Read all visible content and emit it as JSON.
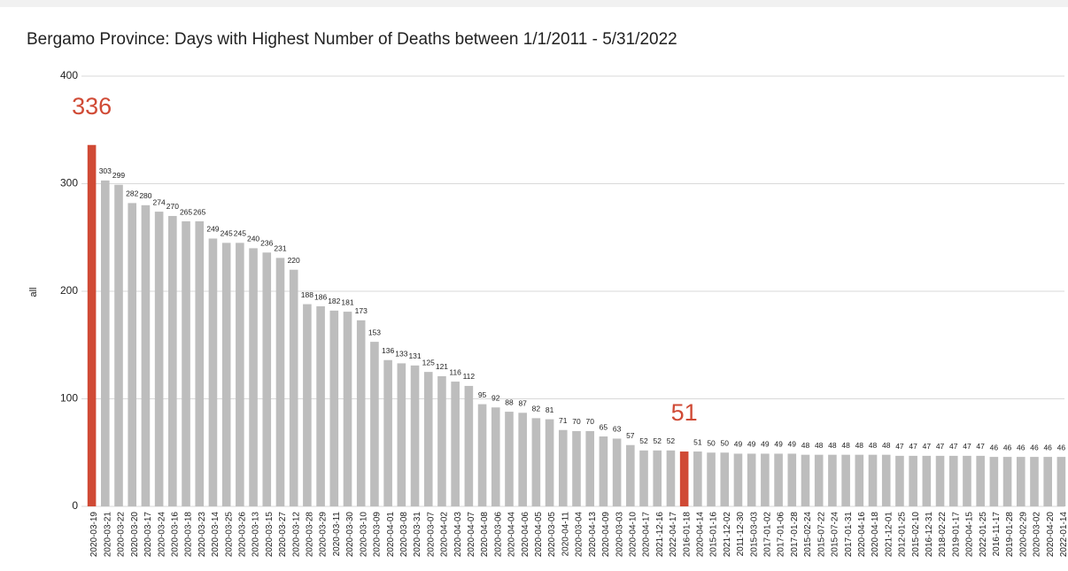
{
  "chart_data": {
    "type": "bar",
    "title": "Bergamo Province: Days with Highest Number of Deaths between 1/1/2011 - 5/31/2022",
    "y_label": "all",
    "categories": [
      "2020-03-19",
      "2020-03-21",
      "2020-03-22",
      "2020-03-20",
      "2020-03-17",
      "2020-03-24",
      "2020-03-16",
      "2020-03-18",
      "2020-03-23",
      "2020-03-14",
      "2020-03-25",
      "2020-03-26",
      "2020-03-13",
      "2020-03-15",
      "2020-03-27",
      "2020-03-12",
      "2020-03-28",
      "2020-03-29",
      "2020-03-11",
      "2020-03-30",
      "2020-03-10",
      "2020-03-09",
      "2020-04-01",
      "2020-03-08",
      "2020-03-31",
      "2020-03-07",
      "2020-04-02",
      "2020-04-03",
      "2020-04-07",
      "2020-04-08",
      "2020-03-06",
      "2020-04-04",
      "2020-04-06",
      "2020-04-05",
      "2020-03-05",
      "2020-04-11",
      "2020-03-04",
      "2020-04-13",
      "2020-04-09",
      "2020-03-03",
      "2020-04-10",
      "2020-04-17",
      "2021-12-16",
      "2022-04-17",
      "2016-01-18",
      "2020-04-14",
      "2015-01-16",
      "2021-12-02",
      "2011-12-30",
      "2015-03-03",
      "2017-01-02",
      "2017-01-06",
      "2017-01-28",
      "2015-02-24",
      "2015-07-22",
      "2015-07-24",
      "2017-01-31",
      "2020-04-16",
      "2020-04-18",
      "2021-12-01",
      "2012-01-25",
      "2015-02-10",
      "2016-12-31",
      "2018-02-22",
      "2019-01-17",
      "2020-04-15",
      "2022-01-25",
      "2016-11-17",
      "2019-01-28",
      "2020-02-29",
      "2020-03-02",
      "2020-04-20",
      "2022-01-14"
    ],
    "values": [
      336,
      303,
      299,
      282,
      280,
      274,
      270,
      265,
      265,
      249,
      245,
      245,
      240,
      236,
      231,
      220,
      188,
      186,
      182,
      181,
      173,
      153,
      136,
      133,
      131,
      125,
      121,
      116,
      112,
      95,
      92,
      88,
      87,
      82,
      81,
      71,
      70,
      70,
      65,
      63,
      57,
      52,
      52,
      52,
      51,
      51,
      50,
      50,
      49,
      49,
      49,
      49,
      49,
      48,
      48,
      48,
      48,
      48,
      48,
      48,
      47,
      47,
      47,
      47,
      47,
      47,
      47,
      46,
      46,
      46,
      46,
      46,
      46
    ],
    "colors": [
      "#d04a35",
      "#bdbdbd",
      "#bdbdbd",
      "#bdbdbd",
      "#bdbdbd",
      "#bdbdbd",
      "#bdbdbd",
      "#bdbdbd",
      "#bdbdbd",
      "#bdbdbd",
      "#bdbdbd",
      "#bdbdbd",
      "#bdbdbd",
      "#bdbdbd",
      "#bdbdbd",
      "#bdbdbd",
      "#bdbdbd",
      "#bdbdbd",
      "#bdbdbd",
      "#bdbdbd",
      "#bdbdbd",
      "#bdbdbd",
      "#bdbdbd",
      "#bdbdbd",
      "#bdbdbd",
      "#bdbdbd",
      "#bdbdbd",
      "#bdbdbd",
      "#bdbdbd",
      "#bdbdbd",
      "#bdbdbd",
      "#bdbdbd",
      "#bdbdbd",
      "#bdbdbd",
      "#bdbdbd",
      "#bdbdbd",
      "#bdbdbd",
      "#bdbdbd",
      "#bdbdbd",
      "#bdbdbd",
      "#bdbdbd",
      "#bdbdbd",
      "#bdbdbd",
      "#bdbdbd",
      "#d04a35",
      "#bdbdbd",
      "#bdbdbd",
      "#bdbdbd",
      "#bdbdbd",
      "#bdbdbd",
      "#bdbdbd",
      "#bdbdbd",
      "#bdbdbd",
      "#bdbdbd",
      "#bdbdbd",
      "#bdbdbd",
      "#bdbdbd",
      "#bdbdbd",
      "#bdbdbd",
      "#bdbdbd",
      "#bdbdbd",
      "#bdbdbd",
      "#bdbdbd",
      "#bdbdbd",
      "#bdbdbd",
      "#bdbdbd",
      "#bdbdbd",
      "#bdbdbd",
      "#bdbdbd",
      "#bdbdbd",
      "#bdbdbd",
      "#bdbdbd",
      "#bdbdbd"
    ],
    "ylim": [
      0,
      400
    ],
    "yticks": [
      0,
      100,
      200,
      300,
      400
    ],
    "grid": true
  }
}
